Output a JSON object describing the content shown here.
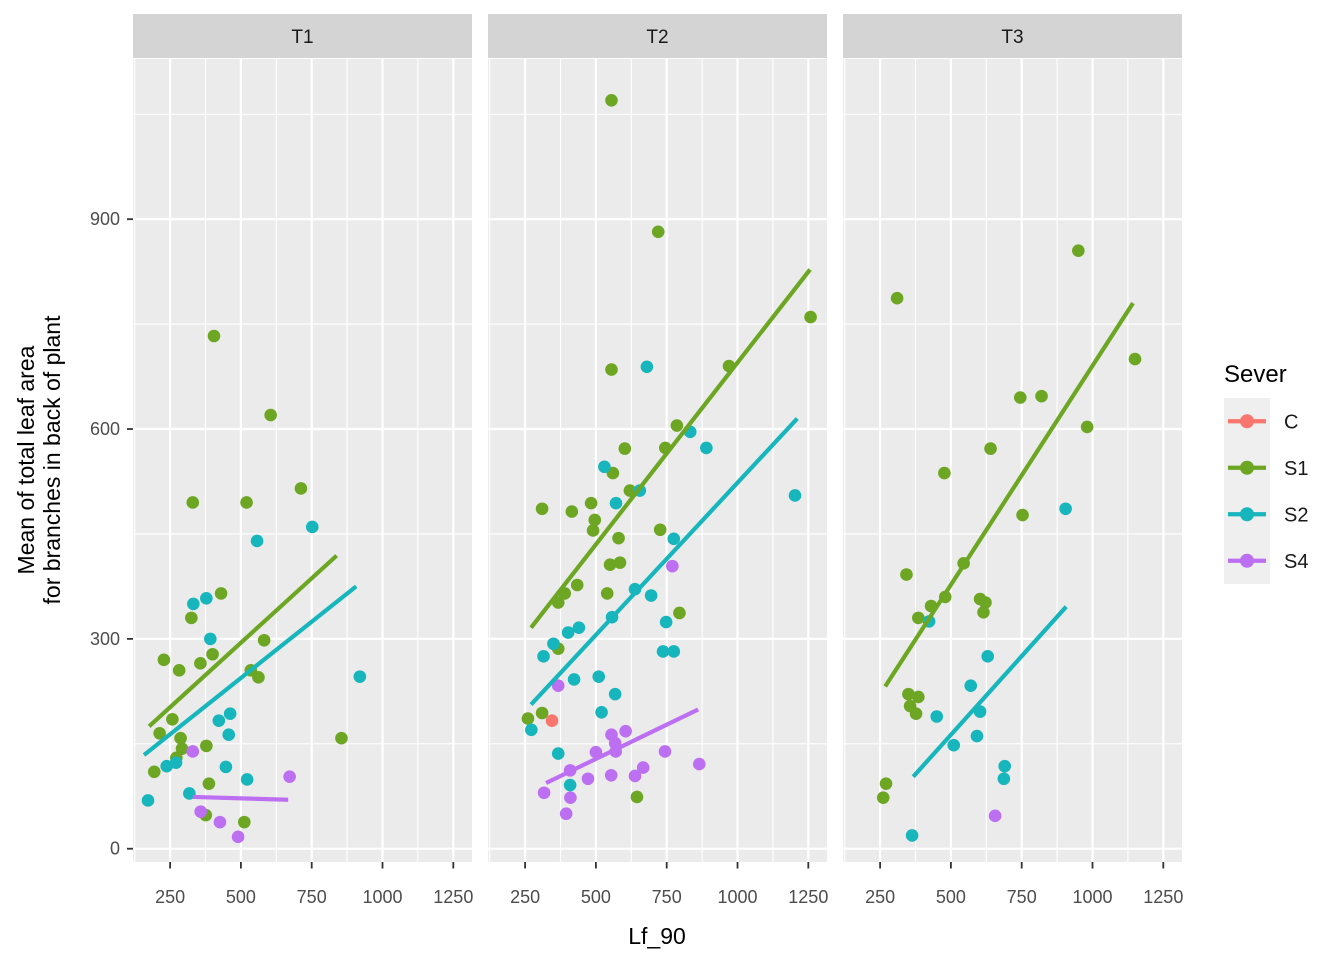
{
  "chart_data": {
    "type": "scatter",
    "title": "",
    "xlabel": "Lf_90",
    "ylabel_lines": [
      "Mean of total leaf area",
      "for branches in back of plant"
    ],
    "facet_variable_values": [
      "T1",
      "T2",
      "T3"
    ],
    "xlim": [
      119,
      1316
    ],
    "ylim": [
      -19,
      1129
    ],
    "x_major_ticks": [
      250,
      500,
      750,
      1000,
      1250
    ],
    "x_minor_ticks": [
      125,
      375,
      625,
      875,
      1125
    ],
    "y_major_ticks": [
      0,
      300,
      600,
      900
    ],
    "y_minor_ticks": [
      150,
      450,
      750,
      1050
    ],
    "legend": {
      "title": "Sever",
      "entries": [
        {
          "label": "C",
          "color": "#F8766D"
        },
        {
          "label": "S1",
          "color": "#6CA622"
        },
        {
          "label": "S2",
          "color": "#17B5BC"
        },
        {
          "label": "S4",
          "color": "#BD6FF2"
        }
      ]
    },
    "style": {
      "panel_bg": "#EBEBEB",
      "strip_bg": "#D4D4D4",
      "grid_color": "#FFFFFF",
      "tick_text_color": "#4D4D4D",
      "tick_mark_color": "#333333",
      "title_text_color": "#000000",
      "strip_text_color": "#1A1A1A",
      "legend_key_bg": "#EFEFEF",
      "point_radius": 6.3,
      "trend_line_width": 4.2
    },
    "panels": [
      {
        "facet": "T1",
        "points": {
          "C": [],
          "S1": [
            [
              405,
              733
            ],
            [
              605,
              620
            ],
            [
              330,
              495
            ],
            [
              520,
              495
            ],
            [
              712,
              515
            ],
            [
              430,
              365
            ],
            [
              325,
              330
            ],
            [
              228,
              270
            ],
            [
              400,
              278
            ],
            [
              357,
              265
            ],
            [
              282,
              255
            ],
            [
              582,
              298
            ],
            [
              535,
              255
            ],
            [
              562,
              245
            ],
            [
              258,
              185
            ],
            [
              213,
              165
            ],
            [
              287,
              158
            ],
            [
              292,
              143
            ],
            [
              272,
              130
            ],
            [
              194,
              110
            ],
            [
              378,
              147
            ],
            [
              387,
              93
            ],
            [
              512,
              38
            ],
            [
              376,
              48
            ],
            [
              855,
              158
            ]
          ],
          "S2": [
            [
              752,
              460
            ],
            [
              557,
              440
            ],
            [
              332,
              350
            ],
            [
              378,
              358
            ],
            [
              392,
              300
            ],
            [
              422,
              183
            ],
            [
              462,
              193
            ],
            [
              457,
              163
            ],
            [
              238,
              118
            ],
            [
              271,
              123
            ],
            [
              447,
              117
            ],
            [
              522,
              99
            ],
            [
              920,
              246
            ],
            [
              172,
              69
            ],
            [
              318,
              79
            ]
          ],
          "S4": [
            [
              330,
              139
            ],
            [
              672,
              103
            ],
            [
              358,
              53
            ],
            [
              426,
              38
            ],
            [
              490,
              17
            ]
          ]
        },
        "trend_lines": {
          "S1": [
            [
              176,
              175
            ],
            [
              838,
              419
            ]
          ],
          "S2": [
            [
              158,
              134
            ],
            [
              907,
              375
            ]
          ],
          "S4": [
            [
              330,
              74
            ],
            [
              667,
              70
            ]
          ]
        }
      },
      {
        "facet": "T2",
        "points": {
          "C": [
            [
              345,
              183
            ]
          ],
          "S1": [
            [
              555,
              1070
            ],
            [
              720,
              882
            ],
            [
              1258,
              760
            ],
            [
              555,
              685
            ],
            [
              970,
              690
            ],
            [
              786,
              605
            ],
            [
              602,
              572
            ],
            [
              745,
              573
            ],
            [
              560,
              537
            ],
            [
              310,
              486
            ],
            [
              415,
              482
            ],
            [
              483,
              494
            ],
            [
              496,
              470
            ],
            [
              490,
              455
            ],
            [
              620,
              512
            ],
            [
              580,
              444
            ],
            [
              727,
              456
            ],
            [
              550,
              406
            ],
            [
              585,
              409
            ],
            [
              540,
              365
            ],
            [
              434,
              377
            ],
            [
              390,
              365
            ],
            [
              367,
              352
            ],
            [
              367,
              286
            ],
            [
              310,
              194
            ],
            [
              260,
              186
            ],
            [
              795,
              337
            ],
            [
              645,
              74
            ]
          ],
          "S2": [
            [
              680,
              689
            ],
            [
              833,
              596
            ],
            [
              890,
              573
            ],
            [
              530,
              546
            ],
            [
              571,
              494
            ],
            [
              655,
              512
            ],
            [
              1203,
              505
            ],
            [
              775,
              443
            ],
            [
              638,
              371
            ],
            [
              695,
              362
            ],
            [
              748,
              324
            ],
            [
              557,
              331
            ],
            [
              402,
              309
            ],
            [
              440,
              316
            ],
            [
              350,
              293
            ],
            [
              315,
              275
            ],
            [
              423,
              242
            ],
            [
              510,
              246
            ],
            [
              568,
              221
            ],
            [
              520,
              195
            ],
            [
              272,
              170
            ],
            [
              737,
              282
            ],
            [
              775,
              282
            ],
            [
              367,
              136
            ],
            [
              409,
              91
            ]
          ],
          "S4": [
            [
              770,
              404
            ],
            [
              367,
              233
            ],
            [
              605,
              168
            ],
            [
              555,
              163
            ],
            [
              568,
              151
            ],
            [
              570,
              139
            ],
            [
              500,
              138
            ],
            [
              744,
              139
            ],
            [
              865,
              121
            ],
            [
              667,
              116
            ],
            [
              638,
              104
            ],
            [
              554,
              105
            ],
            [
              472,
              100
            ],
            [
              409,
              112
            ],
            [
              317,
              80
            ],
            [
              410,
              73
            ],
            [
              395,
              50
            ]
          ]
        },
        "trend_lines": {
          "S1": [
            [
              271,
              316
            ],
            [
              1256,
              828
            ]
          ],
          "S2": [
            [
              271,
              206
            ],
            [
              1211,
              615
            ]
          ],
          "S4": [
            [
              324,
              94
            ],
            [
              861,
              199
            ]
          ]
        }
      },
      {
        "facet": "T3",
        "points": {
          "C": [],
          "S1": [
            [
              950,
              855
            ],
            [
              310,
              787
            ],
            [
              1150,
              700
            ],
            [
              745,
              645
            ],
            [
              820,
              647
            ],
            [
              981,
              603
            ],
            [
              640,
              572
            ],
            [
              477,
              537
            ],
            [
              753,
              477
            ],
            [
              545,
              408
            ],
            [
              343,
              392
            ],
            [
              480,
              360
            ],
            [
              430,
              347
            ],
            [
              385,
              330
            ],
            [
              603,
              357
            ],
            [
              622,
              352
            ],
            [
              615,
              338
            ],
            [
              350,
              221
            ],
            [
              385,
              217
            ],
            [
              356,
              204
            ],
            [
              377,
              193
            ],
            [
              271,
              93
            ],
            [
              261,
              73
            ]
          ],
          "S2": [
            [
              905,
              486
            ],
            [
              423,
              325
            ],
            [
              630,
              275
            ],
            [
              570,
              233
            ],
            [
              450,
              189
            ],
            [
              603,
              196
            ],
            [
              592,
              161
            ],
            [
              510,
              148
            ],
            [
              690,
              118
            ],
            [
              687,
              100
            ],
            [
              363,
              19
            ]
          ],
          "S4": [
            [
              656,
              47
            ]
          ]
        },
        "trend_lines": {
          "S1": [
            [
              268,
              232
            ],
            [
              1143,
              780
            ]
          ],
          "S2": [
            [
              367,
              103
            ],
            [
              907,
              346
            ]
          ]
        }
      }
    ]
  }
}
